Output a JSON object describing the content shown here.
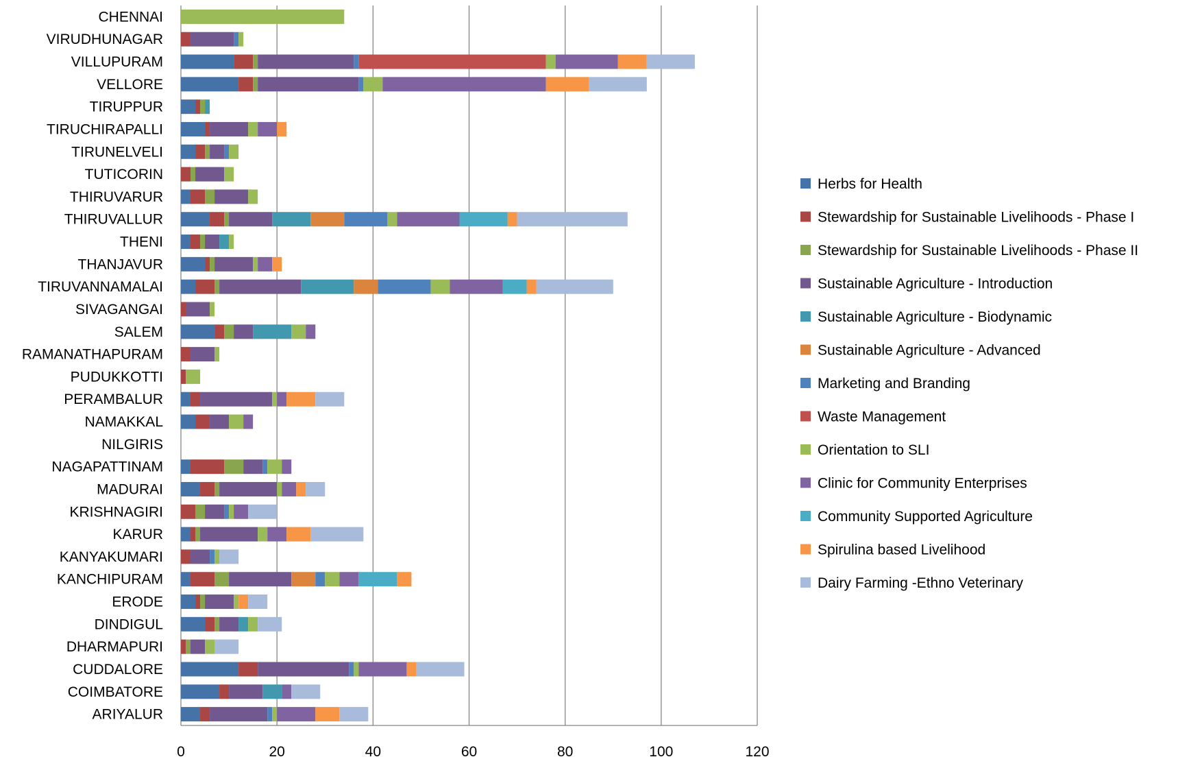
{
  "chart_data": {
    "type": "bar",
    "orientation": "horizontal",
    "stacked": true,
    "title": "",
    "xlabel": "",
    "ylabel": "",
    "xlim": [
      0,
      120
    ],
    "xticks": [
      "0",
      "20",
      "40",
      "60",
      "80",
      "100",
      "120"
    ],
    "grid": "vertical",
    "legend_position": "right",
    "categories": [
      "CHENNAI",
      "VIRUDHUNAGAR",
      "VILLUPURAM",
      "VELLORE",
      "TIRUPPUR",
      "TIRUCHIRAPALLI",
      "TIRUNELVELI",
      "TUTICORIN",
      "THIRUVARUR",
      "THIRUVALLUR",
      "THENI",
      "THANJAVUR",
      "TIRUVANNAMALAI",
      "SIVAGANGAI",
      "SALEM",
      "RAMANATHAPURAM",
      "PUDUKKOTTI",
      "PERAMBALUR",
      "NAMAKKAL",
      "NILGIRIS",
      "NAGAPATTINAM",
      "MADURAI",
      "KRISHNAGIRI",
      "KARUR",
      "KANYAKUMARI",
      "KANCHIPURAM",
      "ERODE",
      "DINDIGUL",
      "DHARMAPURI",
      "CUDDALORE",
      "COIMBATORE",
      "ARIYALUR"
    ],
    "series": [
      {
        "name": "Herbs for Health",
        "color": "#4572A7",
        "values": [
          0,
          0,
          11,
          12,
          3,
          5,
          3,
          0,
          2,
          6,
          2,
          5,
          3,
          0,
          7,
          0,
          0,
          2,
          3,
          0,
          2,
          4,
          0,
          2,
          0,
          2,
          3,
          5,
          0,
          12,
          8,
          4
        ]
      },
      {
        "name": "Stewardship for Sustainable Livelihoods  - Phase I",
        "color": "#AA4643",
        "values": [
          0,
          2,
          4,
          3,
          1,
          1,
          2,
          2,
          3,
          3,
          2,
          1,
          4,
          1,
          2,
          2,
          1,
          2,
          3,
          0,
          7,
          3,
          3,
          1,
          2,
          5,
          1,
          2,
          1,
          4,
          2,
          2
        ]
      },
      {
        "name": "Stewardship for Sustainable Livelihoods - Phase II",
        "color": "#89A54E",
        "values": [
          0,
          0,
          1,
          1,
          1,
          0,
          1,
          1,
          2,
          1,
          1,
          1,
          1,
          0,
          2,
          0,
          0,
          0,
          0,
          0,
          4,
          1,
          2,
          1,
          0,
          3,
          1,
          1,
          1,
          0,
          0,
          0
        ]
      },
      {
        "name": "Sustainable Agriculture - Introduction",
        "color": "#71588F",
        "values": [
          0,
          9,
          20,
          21,
          0,
          8,
          3,
          6,
          7,
          9,
          3,
          8,
          17,
          5,
          4,
          5,
          0,
          15,
          4,
          0,
          4,
          12,
          4,
          12,
          4,
          13,
          6,
          4,
          3,
          19,
          7,
          12
        ]
      },
      {
        "name": "Sustainable Agriculture - Biodynamic",
        "color": "#4198AF",
        "values": [
          0,
          0,
          0,
          0,
          1,
          0,
          0,
          0,
          0,
          8,
          2,
          0,
          11,
          0,
          8,
          0,
          0,
          0,
          0,
          0,
          0,
          0,
          0,
          0,
          0,
          0,
          0,
          2,
          0,
          0,
          4,
          0
        ]
      },
      {
        "name": "Sustainable Agriculture - Advanced",
        "color": "#DB843D",
        "values": [
          0,
          0,
          0,
          0,
          0,
          0,
          0,
          0,
          0,
          7,
          0,
          0,
          5,
          0,
          0,
          0,
          0,
          0,
          0,
          0,
          0,
          0,
          0,
          0,
          0,
          5,
          0,
          0,
          0,
          0,
          0,
          0
        ]
      },
      {
        "name": "Marketing and Branding",
        "color": "#4F81BD",
        "values": [
          0,
          1,
          1,
          1,
          0,
          0,
          1,
          0,
          0,
          9,
          0,
          0,
          11,
          0,
          0,
          0,
          0,
          0,
          0,
          0,
          1,
          0,
          1,
          0,
          1,
          2,
          0,
          0,
          0,
          1,
          0,
          1
        ]
      },
      {
        "name": "Waste Management",
        "color": "#C0504D",
        "values": [
          0,
          0,
          39,
          0,
          0,
          0,
          0,
          0,
          0,
          0,
          0,
          0,
          0,
          0,
          0,
          0,
          0,
          0,
          0,
          0,
          0,
          0,
          0,
          0,
          0,
          0,
          0,
          0,
          0,
          0,
          0,
          0
        ]
      },
      {
        "name": "Orientation to SLI",
        "color": "#9BBB59",
        "values": [
          34,
          1,
          2,
          4,
          0,
          2,
          2,
          2,
          2,
          2,
          1,
          1,
          4,
          1,
          3,
          1,
          3,
          1,
          3,
          0,
          3,
          1,
          1,
          2,
          1,
          3,
          1,
          2,
          2,
          1,
          0,
          1
        ]
      },
      {
        "name": "Clinic for Community Enterprises",
        "color": "#8064A2",
        "values": [
          0,
          0,
          13,
          34,
          0,
          4,
          0,
          0,
          0,
          13,
          0,
          3,
          11,
          0,
          2,
          0,
          0,
          2,
          2,
          0,
          2,
          3,
          3,
          4,
          0,
          4,
          0,
          0,
          0,
          10,
          2,
          8
        ]
      },
      {
        "name": "Community Supported Agriculture",
        "color": "#4BACC6",
        "values": [
          0,
          0,
          0,
          0,
          0,
          0,
          0,
          0,
          0,
          10,
          0,
          0,
          5,
          0,
          0,
          0,
          0,
          0,
          0,
          0,
          0,
          0,
          0,
          0,
          0,
          8,
          0,
          0,
          0,
          0,
          0,
          0
        ]
      },
      {
        "name": "Spirulina based Livelihood",
        "color": "#F79646",
        "values": [
          0,
          0,
          6,
          9,
          0,
          2,
          0,
          0,
          0,
          2,
          0,
          2,
          2,
          0,
          0,
          0,
          0,
          6,
          0,
          0,
          0,
          2,
          0,
          5,
          0,
          3,
          2,
          0,
          0,
          2,
          0,
          5
        ]
      },
      {
        "name": "Dairy Farming -Ethno Veterinary",
        "color": "#A9BBDA",
        "values": [
          0,
          0,
          10,
          12,
          0,
          0,
          0,
          0,
          0,
          23,
          0,
          0,
          16,
          0,
          0,
          0,
          0,
          6,
          0,
          0,
          0,
          4,
          6,
          11,
          4,
          0,
          4,
          5,
          5,
          10,
          6,
          6
        ]
      }
    ]
  }
}
